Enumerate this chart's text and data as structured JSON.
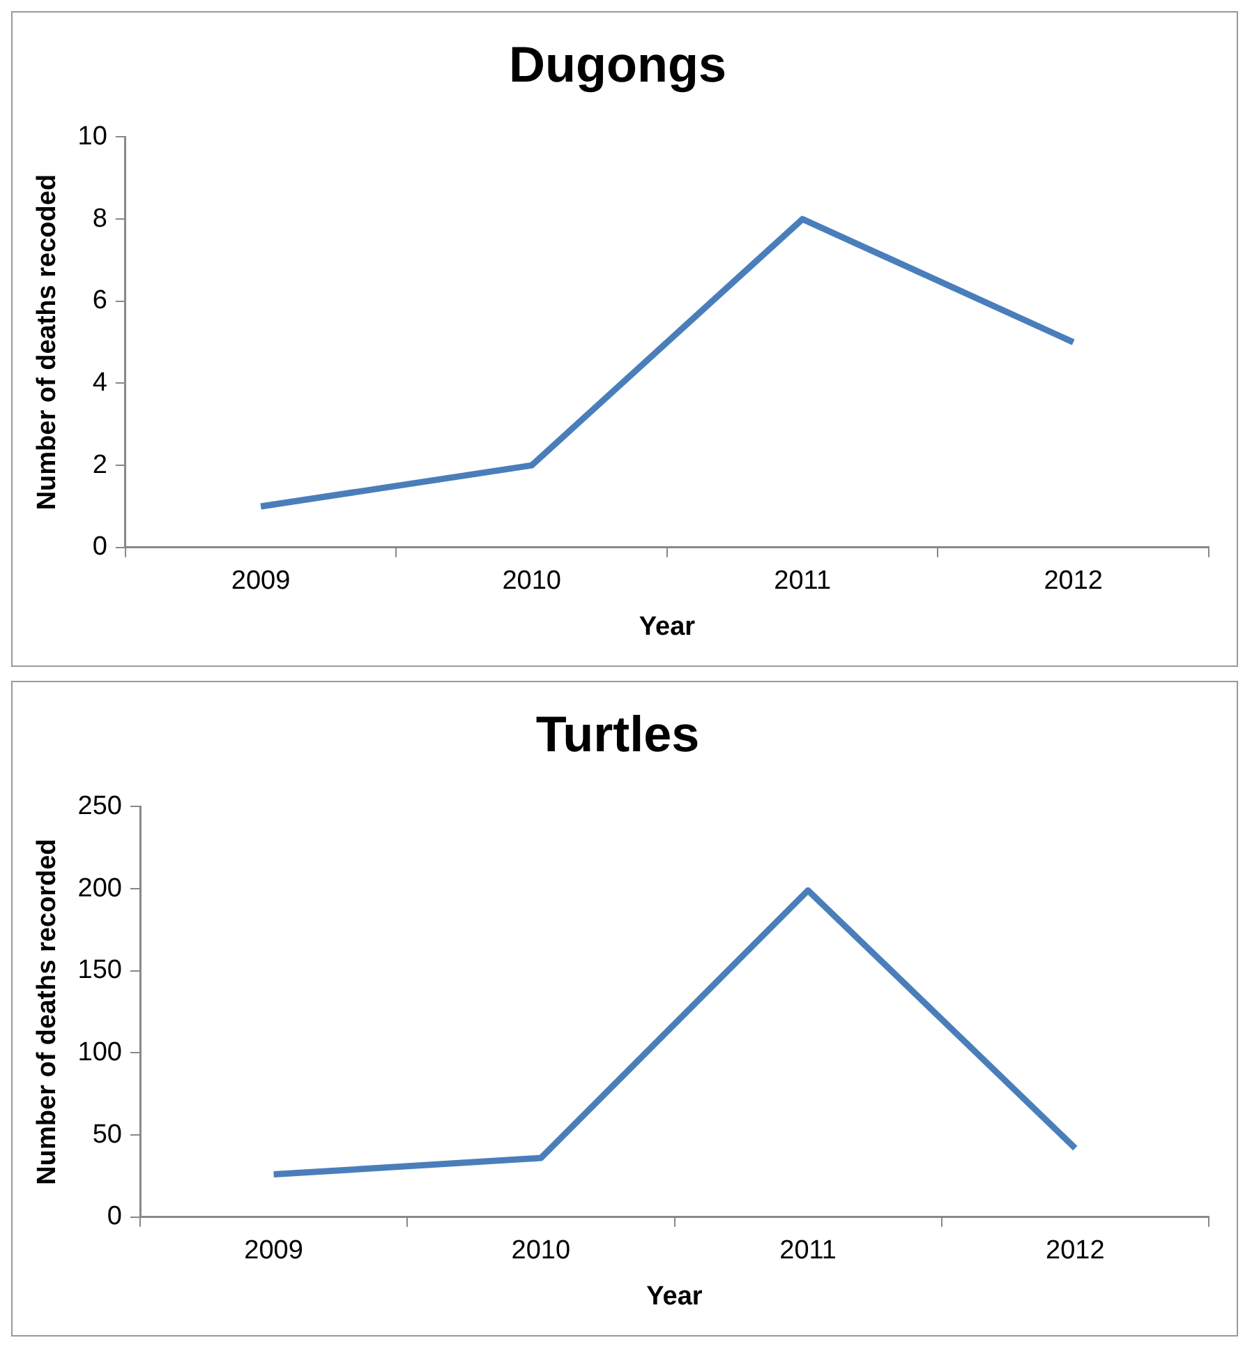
{
  "chart_data": [
    {
      "type": "line",
      "title": "Dugongs",
      "xlabel": "Year",
      "ylabel": "Number of deaths recoded",
      "categories": [
        "2009",
        "2010",
        "2011",
        "2012"
      ],
      "series": [
        {
          "color": "#4a7ebb",
          "values": [
            1,
            2,
            8,
            5
          ]
        }
      ],
      "ylim": [
        0,
        10
      ],
      "yticks": [
        0,
        2,
        4,
        6,
        8,
        10
      ],
      "grid": false,
      "legend": false,
      "marker": "none"
    },
    {
      "type": "line",
      "title": "Turtles",
      "xlabel": "Year",
      "ylabel": "Number of deaths recorded",
      "categories": [
        "2009",
        "2010",
        "2011",
        "2012"
      ],
      "series": [
        {
          "color": "#4a7ebb",
          "values": [
            26,
            36,
            199,
            42
          ]
        }
      ],
      "ylim": [
        0,
        250
      ],
      "yticks": [
        0,
        50,
        100,
        150,
        200,
        250
      ],
      "grid": false,
      "legend": false,
      "marker": "none"
    }
  ]
}
